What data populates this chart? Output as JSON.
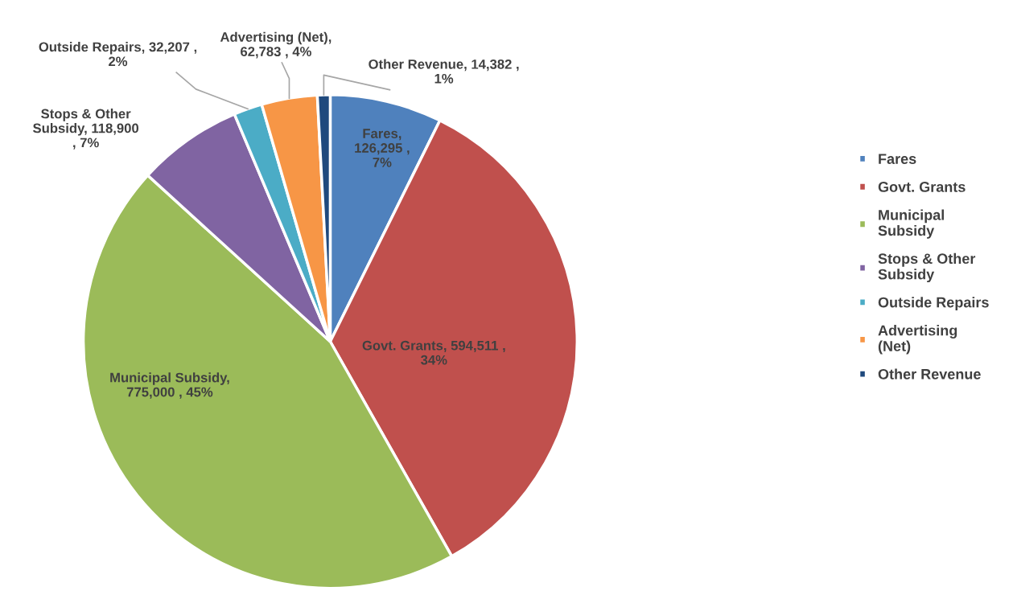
{
  "chart_data": {
    "type": "pie",
    "categories": [
      "Fares",
      "Govt. Grants",
      "Municipal Subsidy",
      "Stops & Other Subsidy",
      "Outside Repairs",
      "Advertising (Net)",
      "Other Revenue"
    ],
    "values": [
      126295,
      594511,
      775000,
      118900,
      32207,
      62783,
      14382
    ],
    "value_labels": [
      "Fares, 126,295 , 7%",
      "Govt. Grants, 594,511 , 34%",
      "Municipal Subsidy, 775,000 , 45%",
      "Stops & Other Subsidy, 118,900 , 7%",
      "Outside Repairs, 32,207 , 2%",
      "Advertising (Net), 62,783 , 4%",
      "Other Revenue, 14,382 , 1%"
    ],
    "colors": [
      "#4f81bd",
      "#c0504d",
      "#9bbb59",
      "#8064a2",
      "#4bacc6",
      "#f79646",
      "#1f497d"
    ],
    "legend": "right"
  }
}
